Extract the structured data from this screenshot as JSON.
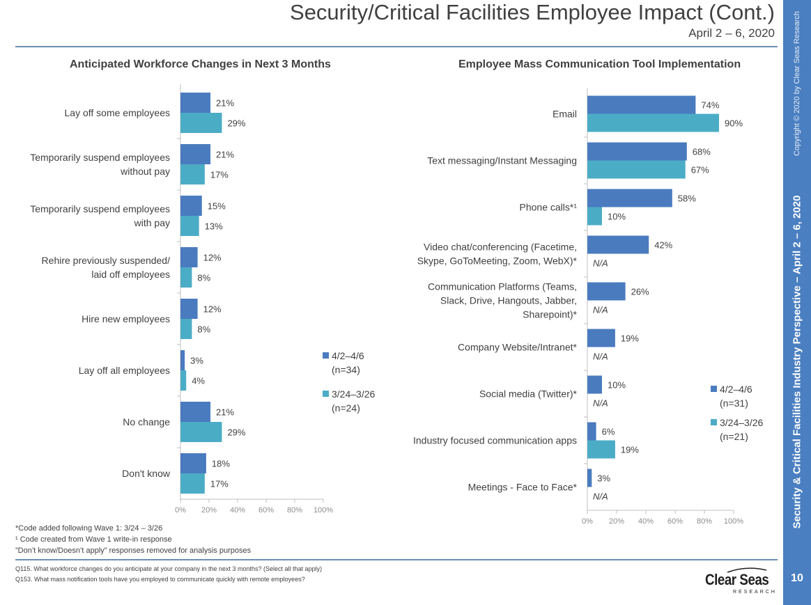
{
  "header": {
    "title": "Security/Critical Facilities Employee Impact (Cont.)",
    "subtitle": "April 2 – 6, 2020"
  },
  "sidebar": {
    "copyright": "Copyright © 2020 by Clear Seas Research",
    "label": "Security & Critical Facilities Industry Perspective – April 2 – 6, 2020",
    "page_number": "10",
    "color": "#4a7fc1"
  },
  "colors": {
    "series1": "#4a7bbf",
    "series2": "#4bacc6",
    "rule": "#6a8fb3"
  },
  "chart_data": [
    {
      "type": "bar",
      "orientation": "horizontal",
      "title": "Anticipated Workforce Changes in Next 3 Months",
      "categories": [
        [
          "Lay off some employees"
        ],
        [
          "Temporarily suspend employees",
          "without pay"
        ],
        [
          "Temporarily suspend employees",
          "with pay"
        ],
        [
          "Rehire previously suspended/",
          "laid off employees"
        ],
        [
          "Hire new employees"
        ],
        [
          "Lay off all employees"
        ],
        [
          "No change"
        ],
        [
          "Don't know"
        ]
      ],
      "series": [
        {
          "name": "4/2–4/6 (n=34)",
          "legend": [
            "4/2–4/6",
            "(n=34)"
          ],
          "color": "#4a7bbf",
          "values": [
            21,
            21,
            15,
            12,
            12,
            3,
            21,
            18
          ]
        },
        {
          "name": "3/24–3/26 (n=24)",
          "legend": [
            "3/24–3/26",
            "(n=24)"
          ],
          "color": "#4bacc6",
          "values": [
            29,
            17,
            13,
            8,
            8,
            4,
            29,
            17
          ]
        }
      ],
      "xlim": [
        0,
        100
      ],
      "x_ticks": [
        "0%",
        "20%",
        "40%",
        "60%",
        "80%",
        "100%"
      ],
      "value_suffix": "%",
      "legend_position": "right"
    },
    {
      "type": "bar",
      "orientation": "horizontal",
      "title": "Employee Mass Communication Tool Implementation",
      "categories": [
        [
          "Email"
        ],
        [
          "Text messaging/Instant Messaging"
        ],
        [
          "Phone calls*¹"
        ],
        [
          "Video chat/conferencing (Facetime,",
          "Skype, GoToMeeting, Zoom, WebX)*"
        ],
        [
          "Communication Platforms (Teams,",
          "Slack, Drive, Hangouts, Jabber,",
          "Sharepoint)*"
        ],
        [
          "Company Website/Intranet*"
        ],
        [
          "Social media (Twitter)*"
        ],
        [
          "Industry focused communication apps"
        ],
        [
          "Meetings - Face to Face*"
        ]
      ],
      "series": [
        {
          "name": "4/2–4/6 (n=31)",
          "legend": [
            "4/2–4/6",
            "(n=31)"
          ],
          "color": "#4a7bbf",
          "values": [
            74,
            68,
            58,
            42,
            26,
            19,
            10,
            6,
            3
          ]
        },
        {
          "name": "3/24–3/26 (n=21)",
          "legend": [
            "3/24–3/26",
            "(n=21)"
          ],
          "color": "#4bacc6",
          "values": [
            90,
            67,
            10,
            null,
            null,
            null,
            null,
            19,
            null
          ]
        }
      ],
      "na_label": "N/A",
      "xlim": [
        0,
        100
      ],
      "x_ticks": [
        "0%",
        "20%",
        "40%",
        "60%",
        "80%",
        "100%"
      ],
      "value_suffix": "%",
      "legend_position": "right"
    }
  ],
  "footnotes": [
    "*Code added following Wave 1: 3/24 – 3/26",
    "¹ Code created from Wave 1 write-in response",
    "”Don’t know/Doesn’t apply” responses removed for analysis purposes"
  ],
  "questions": [
    "Q115. What workforce changes do you anticipate at your company in the next 3 months? (Select all that apply)",
    "Q153. What mass notification tools have you employed to communicate quickly with remote employees?"
  ],
  "logo": {
    "name": "Clear Seas",
    "sub": "RESEARCH"
  }
}
